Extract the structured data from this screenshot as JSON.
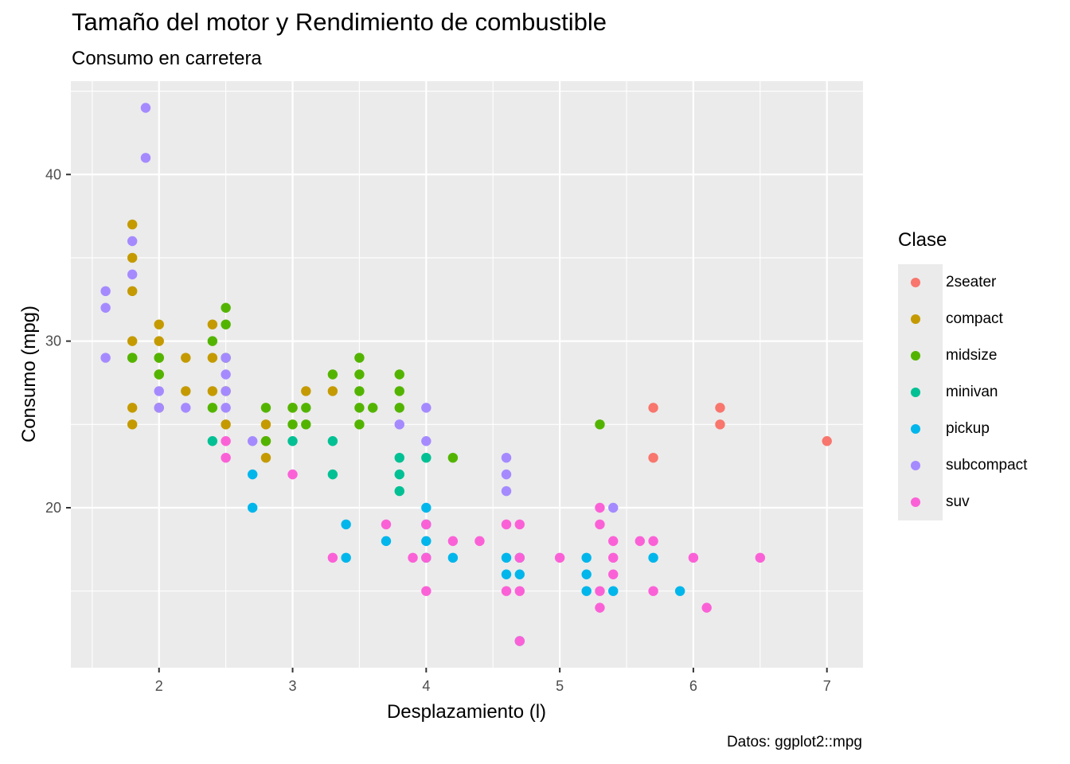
{
  "chart_data": {
    "type": "scatter",
    "title": "Tamaño del motor y Rendimiento de combustible",
    "subtitle": "Consumo en carretera",
    "caption": "Datos: ggplot2::mpg",
    "xlabel": "Desplazamiento (l)",
    "ylabel": "Consumo (mpg)",
    "xlim": [
      1.34,
      7.27
    ],
    "ylim": [
      10.4,
      45.6
    ],
    "x_ticks": [
      2,
      3,
      4,
      5,
      6,
      7
    ],
    "y_ticks": [
      20,
      30,
      40
    ],
    "grid": true,
    "legend_title": "Clase",
    "legend_position": "right",
    "series": [
      {
        "name": "2seater",
        "color": "#F8766D",
        "points": [
          [
            5.7,
            26
          ],
          [
            5.7,
            23
          ],
          [
            6.2,
            26
          ],
          [
            6.2,
            25
          ],
          [
            7.0,
            24
          ]
        ]
      },
      {
        "name": "compact",
        "color": "#C49A00",
        "points": [
          [
            1.8,
            37
          ],
          [
            1.8,
            35
          ],
          [
            1.8,
            33
          ],
          [
            1.8,
            30
          ],
          [
            1.8,
            29
          ],
          [
            1.8,
            26
          ],
          [
            1.8,
            25
          ],
          [
            2.0,
            31
          ],
          [
            2.0,
            30
          ],
          [
            2.0,
            29
          ],
          [
            2.0,
            28
          ],
          [
            2.0,
            26
          ],
          [
            2.2,
            29
          ],
          [
            2.2,
            27
          ],
          [
            2.4,
            31
          ],
          [
            2.4,
            29
          ],
          [
            2.4,
            27
          ],
          [
            2.5,
            27
          ],
          [
            2.5,
            25
          ],
          [
            2.8,
            25
          ],
          [
            2.8,
            24
          ],
          [
            2.8,
            23
          ],
          [
            3.0,
            26
          ],
          [
            3.1,
            27
          ],
          [
            3.3,
            27
          ]
        ]
      },
      {
        "name": "midsize",
        "color": "#53B400",
        "points": [
          [
            1.8,
            29
          ],
          [
            2.0,
            29
          ],
          [
            2.0,
            28
          ],
          [
            2.4,
            30
          ],
          [
            2.4,
            26
          ],
          [
            2.5,
            32
          ],
          [
            2.5,
            31
          ],
          [
            2.5,
            29
          ],
          [
            2.8,
            26
          ],
          [
            2.8,
            24
          ],
          [
            3.0,
            26
          ],
          [
            3.0,
            25
          ],
          [
            3.1,
            26
          ],
          [
            3.1,
            25
          ],
          [
            3.3,
            28
          ],
          [
            3.5,
            29
          ],
          [
            3.5,
            28
          ],
          [
            3.5,
            27
          ],
          [
            3.5,
            26
          ],
          [
            3.5,
            25
          ],
          [
            3.6,
            26
          ],
          [
            3.8,
            28
          ],
          [
            3.8,
            27
          ],
          [
            3.8,
            26
          ],
          [
            4.2,
            23
          ],
          [
            5.3,
            25
          ]
        ]
      },
      {
        "name": "minivan",
        "color": "#00C094",
        "points": [
          [
            2.4,
            24
          ],
          [
            3.0,
            24
          ],
          [
            3.3,
            24
          ],
          [
            3.3,
            22
          ],
          [
            3.8,
            23
          ],
          [
            3.8,
            22
          ],
          [
            3.8,
            21
          ],
          [
            4.0,
            23
          ]
        ]
      },
      {
        "name": "pickup",
        "color": "#00B6EB",
        "points": [
          [
            2.7,
            22
          ],
          [
            2.7,
            20
          ],
          [
            3.4,
            19
          ],
          [
            3.4,
            17
          ],
          [
            3.7,
            18
          ],
          [
            4.0,
            20
          ],
          [
            4.0,
            19
          ],
          [
            4.0,
            18
          ],
          [
            4.0,
            17
          ],
          [
            4.2,
            17
          ],
          [
            4.6,
            17
          ],
          [
            4.6,
            16
          ],
          [
            4.7,
            17
          ],
          [
            4.7,
            16
          ],
          [
            5.2,
            17
          ],
          [
            5.2,
            16
          ],
          [
            5.2,
            15
          ],
          [
            5.4,
            15
          ],
          [
            5.7,
            17
          ],
          [
            5.9,
            15
          ],
          [
            4.7,
            12
          ]
        ]
      },
      {
        "name": "subcompact",
        "color": "#A58AFF",
        "points": [
          [
            1.6,
            33
          ],
          [
            1.6,
            32
          ],
          [
            1.6,
            29
          ],
          [
            1.8,
            36
          ],
          [
            1.8,
            34
          ],
          [
            1.9,
            44
          ],
          [
            1.9,
            41
          ],
          [
            2.0,
            27
          ],
          [
            2.0,
            26
          ],
          [
            2.2,
            26
          ],
          [
            2.5,
            29
          ],
          [
            2.5,
            28
          ],
          [
            2.5,
            27
          ],
          [
            2.5,
            26
          ],
          [
            2.7,
            24
          ],
          [
            3.8,
            25
          ],
          [
            4.0,
            26
          ],
          [
            4.0,
            24
          ],
          [
            4.6,
            23
          ],
          [
            4.6,
            22
          ],
          [
            4.6,
            21
          ],
          [
            5.4,
            20
          ]
        ]
      },
      {
        "name": "suv",
        "color": "#FB61D7",
        "points": [
          [
            2.5,
            24
          ],
          [
            2.5,
            23
          ],
          [
            3.0,
            22
          ],
          [
            3.3,
            17
          ],
          [
            3.7,
            19
          ],
          [
            3.9,
            17
          ],
          [
            4.0,
            19
          ],
          [
            4.0,
            17
          ],
          [
            4.0,
            15
          ],
          [
            4.2,
            18
          ],
          [
            4.4,
            18
          ],
          [
            4.6,
            19
          ],
          [
            4.6,
            15
          ],
          [
            4.7,
            19
          ],
          [
            4.7,
            17
          ],
          [
            4.7,
            15
          ],
          [
            4.7,
            12
          ],
          [
            5.0,
            17
          ],
          [
            5.3,
            20
          ],
          [
            5.3,
            19
          ],
          [
            5.3,
            15
          ],
          [
            5.3,
            14
          ],
          [
            5.4,
            18
          ],
          [
            5.4,
            17
          ],
          [
            5.4,
            16
          ],
          [
            5.6,
            18
          ],
          [
            5.7,
            18
          ],
          [
            5.7,
            15
          ],
          [
            6.0,
            17
          ],
          [
            6.1,
            14
          ],
          [
            6.5,
            17
          ]
        ]
      }
    ]
  }
}
